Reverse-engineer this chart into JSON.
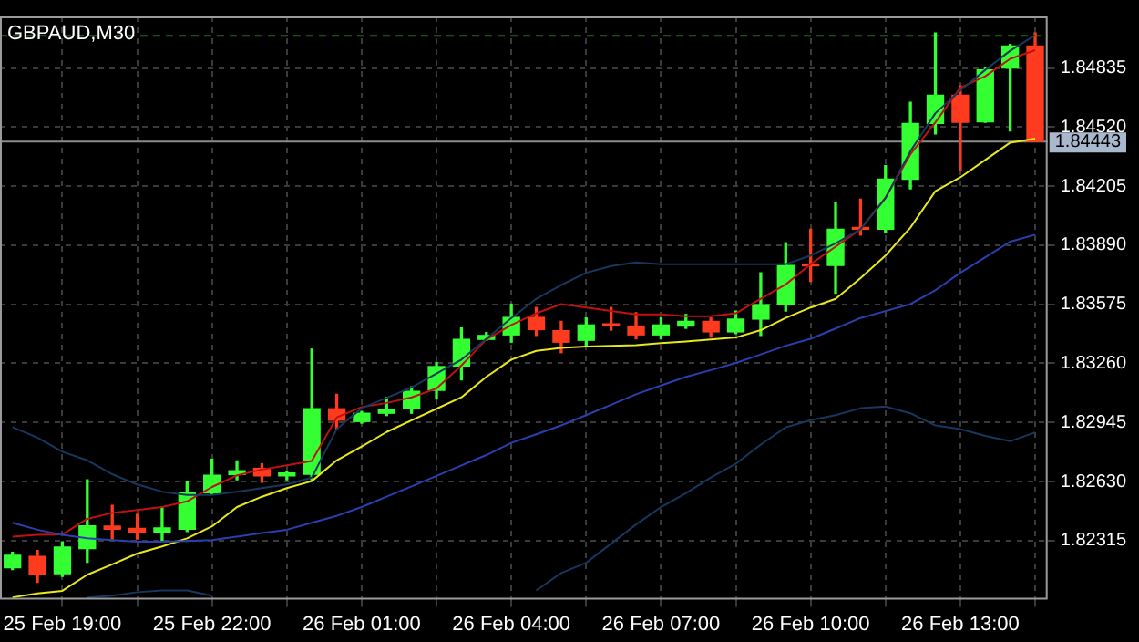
{
  "chart_data": {
    "type": "candlestick",
    "title": "GBPAUD,M30",
    "categories": [
      null,
      null,
      "25 Feb 19:00",
      null,
      null,
      null,
      null,
      null,
      "25 Feb 22:00",
      null,
      null,
      null,
      null,
      null,
      "26 Feb 01:00",
      null,
      null,
      null,
      null,
      null,
      "26 Feb 04:00",
      null,
      null,
      null,
      null,
      null,
      "26 Feb 07:00",
      null,
      null,
      null,
      null,
      null,
      "26 Feb 10:00",
      null,
      null,
      null,
      null,
      null,
      "26 Feb 13:00",
      null,
      null,
      null
    ],
    "ohlc": [
      [
        1.8217,
        1.82253,
        1.8216,
        1.82237
      ],
      [
        1.82231,
        1.82262,
        1.82093,
        1.82133
      ],
      [
        1.82139,
        1.82309,
        1.82124,
        1.82281
      ],
      [
        1.82272,
        1.82639,
        1.822,
        1.82394
      ],
      [
        1.82392,
        1.82503,
        1.82324,
        1.82376
      ],
      [
        1.8238,
        1.82454,
        1.82324,
        1.82361
      ],
      [
        1.82361,
        1.82494,
        1.82309,
        1.82383
      ],
      [
        1.82376,
        1.82632,
        1.82364,
        1.8257
      ],
      [
        1.8257,
        1.82749,
        1.82565,
        1.82663
      ],
      [
        1.82667,
        1.8274,
        1.82639,
        1.82688
      ],
      [
        1.827,
        1.82725,
        1.82626,
        1.8266
      ],
      [
        1.8266,
        1.82685,
        1.82639,
        1.82676
      ],
      [
        1.82669,
        1.83336,
        1.82632,
        1.83018
      ],
      [
        1.83018,
        1.83095,
        1.8291,
        1.82957
      ],
      [
        1.8295,
        1.83003,
        1.82941,
        1.82994
      ],
      [
        1.82994,
        1.83079,
        1.82982,
        1.83012
      ],
      [
        1.83018,
        1.83135,
        1.82994,
        1.83111
      ],
      [
        1.83116,
        1.83265,
        1.8307,
        1.83243
      ],
      [
        1.83246,
        1.83449,
        1.83172,
        1.83388
      ],
      [
        1.83388,
        1.83425,
        1.83383,
        1.83409
      ],
      [
        1.83412,
        1.83576,
        1.83373,
        1.83505
      ],
      [
        1.83505,
        1.83558,
        1.83409,
        1.8344
      ],
      [
        1.83434,
        1.83484,
        1.83317,
        1.83373
      ],
      [
        1.83383,
        1.83502,
        1.83354,
        1.83465
      ],
      [
        1.8347,
        1.83558,
        1.83437,
        1.83461
      ],
      [
        1.83459,
        1.8353,
        1.83391,
        1.83412
      ],
      [
        1.83412,
        1.83502,
        1.83391,
        1.83465
      ],
      [
        1.83459,
        1.83521,
        1.83447,
        1.83484
      ],
      [
        1.83484,
        1.83502,
        1.834,
        1.83428
      ],
      [
        1.83428,
        1.83539,
        1.83419,
        1.83496
      ],
      [
        1.83496,
        1.83743,
        1.83409,
        1.83573
      ],
      [
        1.83573,
        1.83903,
        1.83539,
        1.83782
      ],
      [
        1.83784,
        1.83975,
        1.83697,
        1.8378
      ],
      [
        1.83782,
        1.8412,
        1.83634,
        1.83975
      ],
      [
        1.83984,
        1.84135,
        1.83944,
        1.83975
      ],
      [
        1.83975,
        1.84314,
        1.83956,
        1.84242
      ],
      [
        1.84242,
        1.84652,
        1.8419,
        1.84539
      ],
      [
        1.84539,
        1.85022,
        1.84483,
        1.8469
      ],
      [
        1.8469,
        1.8474,
        1.84292,
        1.84545
      ],
      [
        1.84548,
        1.84838,
        1.84545,
        1.84825
      ],
      [
        1.84835,
        1.84961,
        1.84499,
        1.84952
      ],
      [
        1.84952,
        1.85022,
        1.84443,
        1.84443
      ]
    ],
    "colors": [
      "#33ff33",
      "#ff3b1f",
      "#33ff33",
      "#33ff33",
      "#ff3b1f",
      "#ff3b1f",
      "#33ff33",
      "#33ff33",
      "#33ff33",
      "#33ff33",
      "#ff3b1f",
      "#33ff33",
      "#33ff33",
      "#ff3b1f",
      "#33ff33",
      "#33ff33",
      "#33ff33",
      "#33ff33",
      "#33ff33",
      "#33ff33",
      "#33ff33",
      "#ff3b1f",
      "#ff3b1f",
      "#33ff33",
      "#ff3b1f",
      "#ff3b1f",
      "#33ff33",
      "#33ff33",
      "#ff3b1f",
      "#33ff33",
      "#33ff33",
      "#33ff33",
      "#ff3b1f",
      "#33ff33",
      "#ff3b1f",
      "#33ff33",
      "#33ff33",
      "#33ff33",
      "#ff3b1f",
      "#33ff33",
      "#33ff33",
      "#ff3b1f"
    ],
    "series": [
      {
        "type": "line",
        "color": "#17375e",
        "values": [
          1.8292,
          1.82864,
          1.82789,
          1.82743,
          1.82669,
          1.82614,
          1.82576,
          1.82558,
          1.82558,
          1.82576,
          1.82595,
          1.82614,
          1.82651,
          1.8291,
          1.83021,
          1.83076,
          1.83132,
          1.83206,
          1.8328,
          1.83391,
          1.83502,
          1.83604,
          1.83678,
          1.83743,
          1.83779,
          1.83798,
          1.83789,
          1.83789,
          1.83789,
          1.83789,
          1.83789,
          1.83789,
          1.83835,
          1.839,
          1.83975,
          1.84141,
          1.84391,
          1.84594,
          1.84715,
          1.84825,
          1.84927,
          1.8501
        ]
      },
      {
        "type": "line",
        "color": "#2a3fb0",
        "values": [
          1.8241,
          1.82373,
          1.82346,
          1.82327,
          1.82318,
          1.82309,
          1.82309,
          1.82313,
          1.82318,
          1.82336,
          1.82355,
          1.82373,
          1.8241,
          1.82447,
          1.82494,
          1.82549,
          1.82604,
          1.8266,
          1.82716,
          1.82771,
          1.82836,
          1.82882,
          1.82929,
          1.82984,
          1.83039,
          1.83095,
          1.83142,
          1.83188,
          1.83224,
          1.83262,
          1.83308,
          1.83354,
          1.83391,
          1.83446,
          1.83502,
          1.83539,
          1.83576,
          1.8365,
          1.83743,
          1.83826,
          1.83909,
          1.83946
        ]
      },
      {
        "type": "line",
        "color": "#17375e",
        "values": [
          null,
          null,
          null,
          1.82012,
          1.82021,
          1.8204,
          1.82049,
          1.82049,
          1.82021,
          null,
          null,
          null,
          null,
          null,
          null,
          null,
          null,
          null,
          null,
          null,
          null,
          1.82049,
          1.82142,
          1.82197,
          1.82299,
          1.82401,
          1.82494,
          1.82568,
          1.82651,
          1.82725,
          1.82827,
          1.82919,
          1.82957,
          1.82984,
          1.83021,
          1.8303,
          1.82994,
          1.82929,
          1.8291,
          1.82873,
          1.82845,
          1.82892
        ]
      },
      {
        "type": "line",
        "color": "#e8e81a",
        "values": [
          1.82012,
          1.82033,
          1.82047,
          1.82133,
          1.82188,
          1.82246,
          1.82284,
          1.82327,
          1.82391,
          1.82494,
          1.82549,
          1.82595,
          1.82632,
          1.82743,
          1.82817,
          1.82894,
          1.82957,
          1.83018,
          1.83079,
          1.83188,
          1.8328,
          1.83327,
          1.83342,
          1.8335,
          1.83354,
          1.83357,
          1.83368,
          1.83377,
          1.83387,
          1.83398,
          1.83437,
          1.83502,
          1.83558,
          1.83604,
          1.83715,
          1.83835,
          1.83984,
          1.84178,
          1.84252,
          1.84345,
          1.84437,
          1.84458
        ]
      },
      {
        "type": "line",
        "color": "#c01010",
        "values": [
          1.82336,
          1.82346,
          1.82348,
          1.82431,
          1.82463,
          1.82478,
          1.82494,
          1.82524,
          1.82601,
          1.82663,
          1.82694,
          1.82716,
          1.8274,
          1.82972,
          1.83027,
          1.83049,
          1.83079,
          1.83126,
          1.83249,
          1.83388,
          1.83465,
          1.83527,
          1.83576,
          1.83558,
          1.83539,
          1.83521,
          1.83521,
          1.83512,
          1.83512,
          1.83527,
          1.83604,
          1.83681,
          1.83789,
          1.83882,
          1.83975,
          1.84144,
          1.84375,
          1.84545,
          1.8473,
          1.84791,
          1.84884,
          1.8493
        ]
      }
    ],
    "ylim": [
      1.82,
      1.8511
    ],
    "yticks": [
      1.82315,
      {
        "value": 1.8263,
        "label": "1.82630"
      },
      1.82945,
      {
        "value": 1.8326,
        "label": "1.83260"
      },
      1.83575,
      {
        "value": 1.8389,
        "label": "1.83890"
      },
      1.84205,
      {
        "value": 1.8452,
        "label": "1.84520"
      },
      1.84835
    ],
    "grid": true,
    "legend": false,
    "ref_lines": [
      {
        "axis": "y",
        "value": 1.84443,
        "label": "1.84443",
        "color": "#8c8c8c",
        "line_style": "solid"
      },
      {
        "axis": "y",
        "value": 1.85007,
        "label": null,
        "color": "#1f6b1f",
        "line_style": "dashed"
      }
    ]
  }
}
